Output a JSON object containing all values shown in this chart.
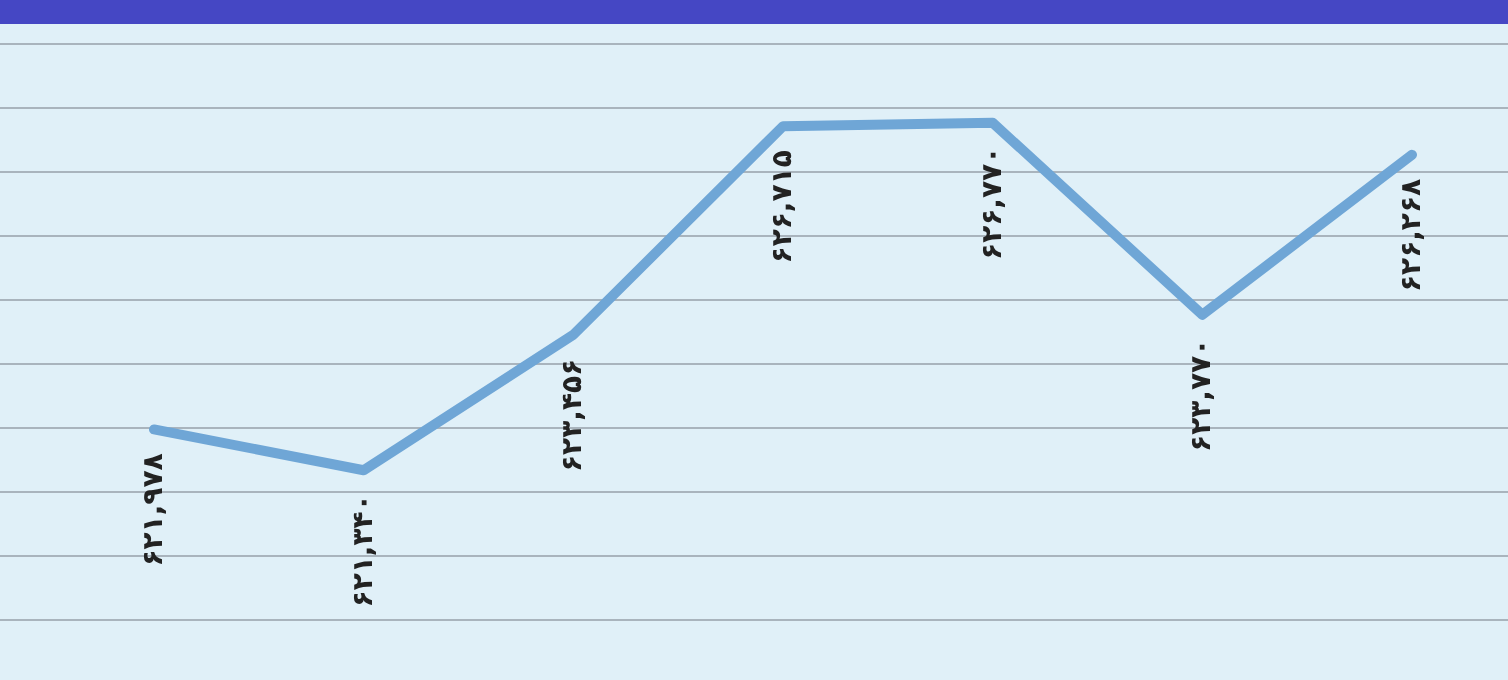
{
  "chart_data": {
    "type": "line",
    "categories": [
      null,
      null,
      null,
      null,
      null,
      null,
      null
    ],
    "series": [
      {
        "color": "#6fa6d6",
        "values": [
          621978,
          621340,
          623456,
          626715,
          626770,
          623770,
          626268
        ],
        "value_labels": [
          "۶۲۱,۹۷۸",
          "۶۲۱,۳۴۰",
          "۶۲۳,۴۵۶",
          "۶۲۶,۷۱۵",
          "۶۲۶,۷۷۰",
          "۶۲۳,۷۷۰",
          "۶۲۶,۲۶۸"
        ]
      }
    ],
    "ylim": [
      619000,
      628000
    ],
    "yticks": [
      {
        "value": 619000,
        "label": null
      },
      {
        "value": 620000,
        "label": null
      },
      {
        "value": 621000,
        "label": null
      },
      {
        "value": 622000,
        "label": null
      },
      {
        "value": 623000,
        "label": null
      },
      {
        "value": 624000,
        "label": null
      },
      {
        "value": 625000,
        "label": null
      },
      {
        "value": 626000,
        "label": null
      },
      {
        "value": 627000,
        "label": null
      },
      {
        "value": 628000,
        "label": null
      }
    ],
    "grid": "y",
    "marker": "none",
    "line_style": "solid",
    "legend": false
  }
}
